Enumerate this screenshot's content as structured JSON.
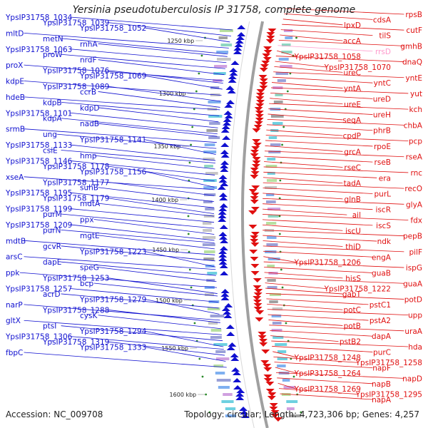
{
  "title": "Yersinia pseudotuberculosis IP 31758, complete genome",
  "footer": {
    "accession": "Accession: NC_009708",
    "topology": "Topology: circular; Length: 4,723,306 bp; Genes: 4,257"
  },
  "colors": {
    "forward": "#1010d0",
    "reverse": "#e01010",
    "rrna": "#ff99cc",
    "backbone": "#a0a0a0",
    "gc_tick": "#2a8a2a"
  },
  "scale_labels": [
    "1250 kbp",
    "1300 kbp",
    "1350 kbp",
    "1400 kbp",
    "1450 kbp",
    "1500 kbp",
    "1550 kbp",
    "1600 kbp"
  ],
  "left_labels": [
    "YpsIP31758_1034",
    "YpsIP31758_1039",
    "YpsIP31758_1052",
    "mltD",
    "metN",
    "rnhA",
    "YpsIP31758_1063",
    "proW",
    "nrdF",
    "proX",
    "YpsIP31758_1076",
    "YpsIP31758_1069",
    "kdpE",
    "YpsIP31758_1089",
    "ccrB",
    "hdeB",
    "kdpB",
    "kdpD",
    "YpsIP31758_1101",
    "kdpA",
    "nadB",
    "srmB",
    "ung",
    "YpsIP31758_1141",
    "YpsIP31758_1133",
    "csiE",
    "hmp",
    "YpsIP31758_1146",
    "YpsIP31758_1178",
    "YpsIP31758_1156",
    "xseA",
    "YpsIP31758_1177",
    "suhB",
    "YpsIP31758_1195",
    "YpsIP31758_1179",
    "mdtA",
    "YpsIP31758_1199",
    "purM",
    "ppx",
    "YpsIP31758_1209",
    "purN",
    "mgtE",
    "mdtB",
    "gcvR",
    "YpsIP31758_1223",
    "arsC",
    "dapE",
    "speG",
    "ppk",
    "YpsIP31758_1253",
    "bcp",
    "YpsIP31758_1257",
    "acrD",
    "YpsIP31758_1279",
    "narP",
    "YpsIP31758_1288",
    "cysK",
    "gltX",
    "ptsI",
    "YpsIP31758_1294",
    "YpsIP31758_1306",
    "YpsIP31758_1319",
    "YpsIP31758_1333",
    "fbpC"
  ],
  "right_labels": [
    "rpsB",
    "cdsA",
    "lpxD",
    "cutF",
    "tilS",
    "accA",
    "gmhB",
    "rrsD",
    "YpsIP31758_1058",
    "dnaQ",
    "YpsIP31758_1070",
    "ureC",
    "yntE",
    "yntC",
    "yntA",
    "yut",
    "ureD",
    "ureE",
    "kch",
    "ureH",
    "seqA",
    "chbA",
    "phrB",
    "cpdP",
    "pcp",
    "rpoE",
    "grcA",
    "rseA",
    "rseB",
    "rseC",
    "rnc",
    "era",
    "tadA",
    "recO",
    "purL",
    "glnB",
    "glyA",
    "iscR",
    "ail",
    "fdx",
    "iscS",
    "iscU",
    "pepB",
    "ndk",
    "thiD",
    "pilF",
    "engA",
    "YpsIP31758_1206",
    "ispG",
    "guaB",
    "hisS",
    "guaA",
    "YpsIP31758_1222",
    "gabT",
    "potD",
    "pstC1",
    "potC",
    "upp",
    "pstA2",
    "potB",
    "uraA",
    "dapA",
    "pstB2",
    "hda",
    "purC",
    "YpsIP31758_1248",
    "YpsIP31758_1258",
    "napF",
    "YpsIP31758_1264",
    "napD",
    "napB",
    "YpsIP31758_1269",
    "YpsIP31758_1295",
    "napA"
  ]
}
